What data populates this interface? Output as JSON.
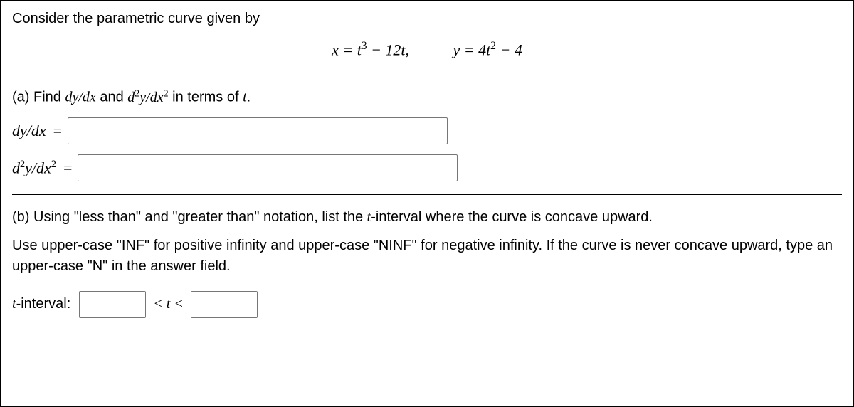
{
  "intro": "Consider the parametric curve given by",
  "equations": {
    "x_html": "x = t<sup>3</sup> − 12t,",
    "y_html": "y = 4t<sup>2</sup> − 4"
  },
  "partA": {
    "prompt_prefix": "(a) Find ",
    "dy_dx_html": "dy/dx",
    "and_text": " and ",
    "d2y_dx2_html": "d<sup>2</sup>y/dx<sup>2</sup>",
    "prompt_suffix_html": " in terms of <span class=\"math\">t</span>.",
    "row1_label_html": "dy/dx",
    "row2_label_html": "d<sup>2</sup>y/dx<sup>2</sup>",
    "eq_sign": "=",
    "input1_value": "",
    "input2_value": ""
  },
  "partB": {
    "p1_prefix": "(b) Using \"less than\" and \"greater than\" notation, list the ",
    "p1_t": "t",
    "p1_suffix": "-interval where the curve is concave upward.",
    "p2": "Use upper-case \"INF\" for positive infinity and upper-case \"NINF\" for negative infinity. If the curve is never concave upward, type an upper-case \"N\" in the answer field.",
    "interval_label_html": "<span class=\"math\">t</span>-interval:",
    "between_html": "&lt; t &lt;",
    "left_value": "",
    "right_value": ""
  }
}
